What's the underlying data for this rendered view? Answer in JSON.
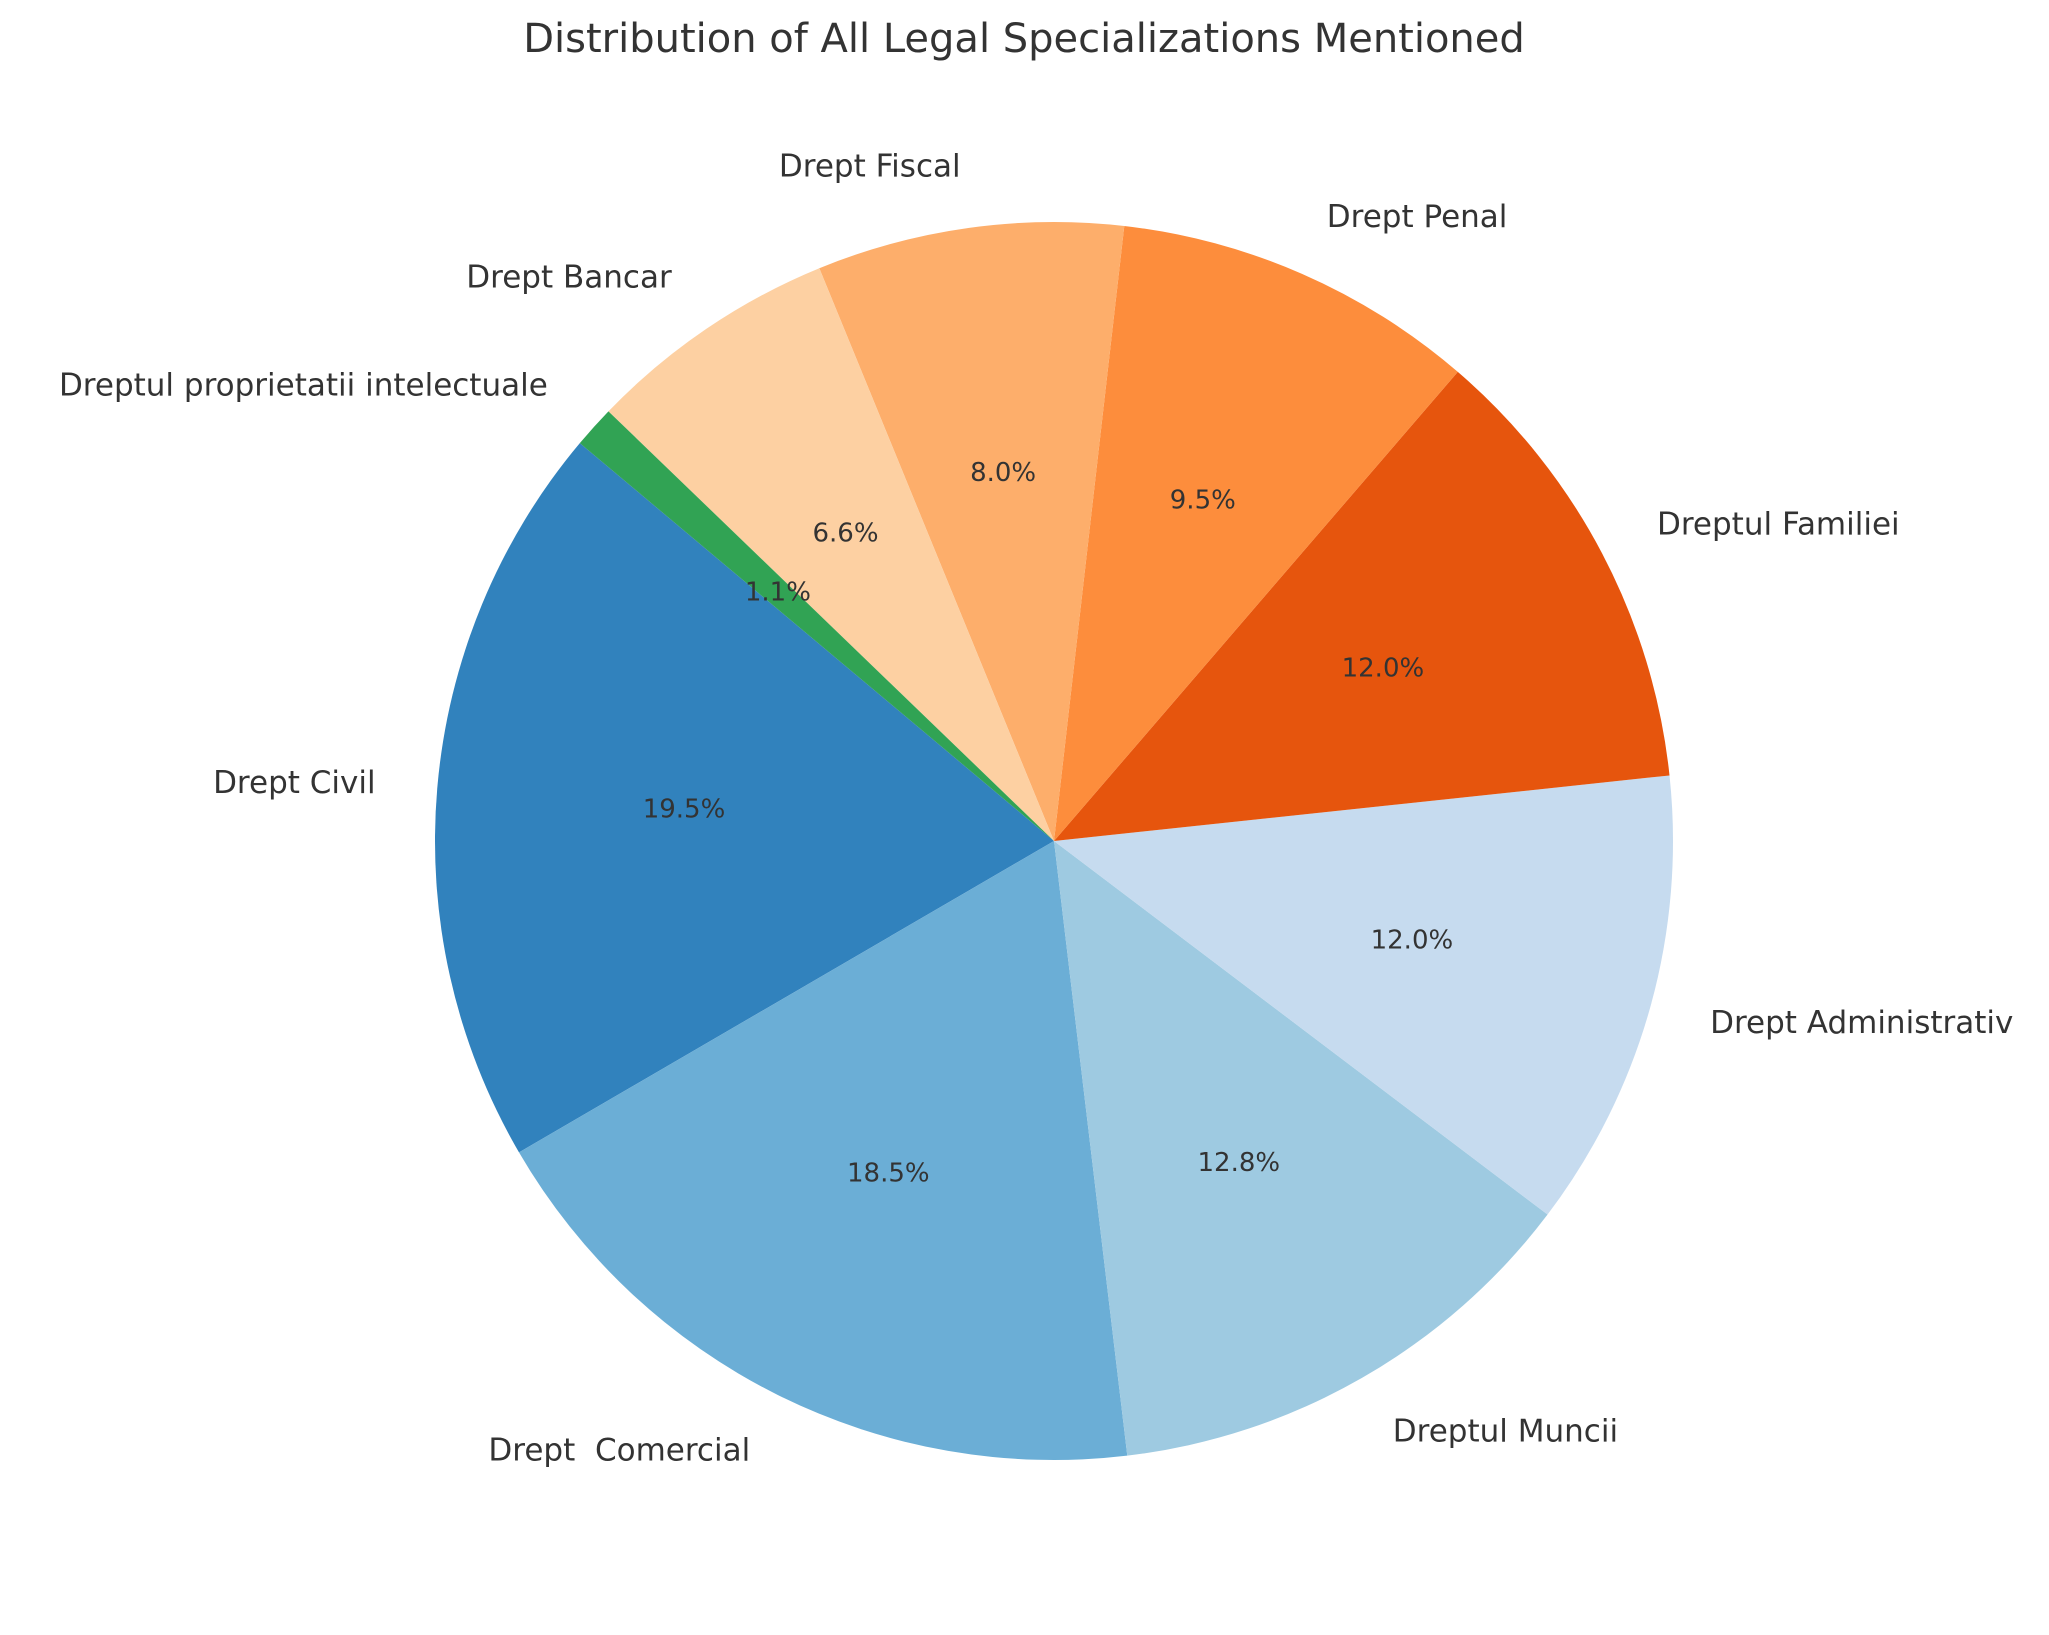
{
  "chart_data": {
    "type": "pie",
    "title": "Distribution of All Legal Specializations Mentioned",
    "start_angle_deg": 140,
    "direction": "counterclockwise",
    "slices": [
      {
        "label": "Drept Civil",
        "value": 19.5,
        "pct_label": "19.5%",
        "color": "#3182bd"
      },
      {
        "label": "Drept  Comercial",
        "value": 18.5,
        "pct_label": "18.5%",
        "color": "#6baed6"
      },
      {
        "label": "Dreptul Muncii",
        "value": 12.8,
        "pct_label": "12.8%",
        "color": "#9ecae1"
      },
      {
        "label": "Drept Administrativ",
        "value": 12.0,
        "pct_label": "12.0%",
        "color": "#c6dbef"
      },
      {
        "label": "Dreptul Familiei",
        "value": 12.0,
        "pct_label": "12.0%",
        "color": "#e6550d"
      },
      {
        "label": "Drept Penal",
        "value": 9.5,
        "pct_label": "9.5%",
        "color": "#fd8d3c"
      },
      {
        "label": "Drept Fiscal",
        "value": 8.0,
        "pct_label": "8.0%",
        "color": "#fdae6b"
      },
      {
        "label": "Drept Bancar",
        "value": 6.6,
        "pct_label": "6.6%",
        "color": "#fdd0a2"
      },
      {
        "label": "Dreptul proprietatii intelectuale",
        "value": 1.1,
        "pct_label": "1.1%",
        "color": "#31a354"
      }
    ]
  }
}
